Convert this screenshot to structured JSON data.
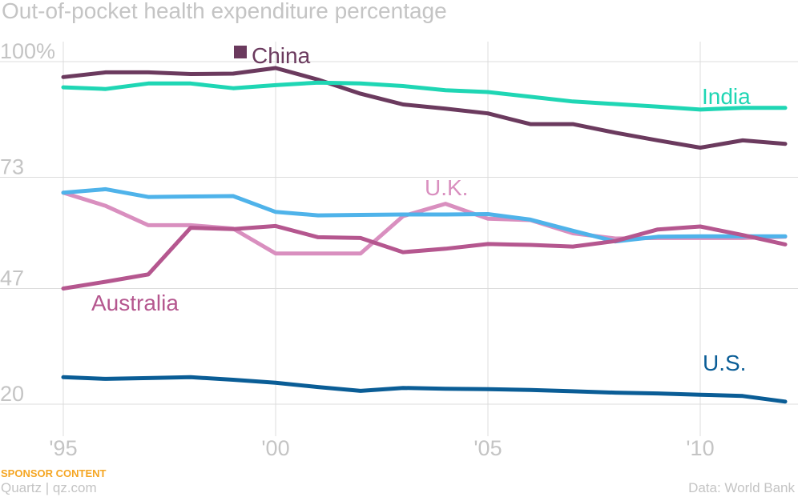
{
  "title": "Out-of-pocket health expenditure percentage",
  "footer": {
    "sponsor": "SPONSOR CONTENT",
    "brand": "Quartz | qz.com",
    "source": "Data: World Bank"
  },
  "chart_data": {
    "type": "line",
    "title": "Out-of-pocket health expenditure percentage",
    "xlabel": "",
    "ylabel": "",
    "x": [
      1995,
      1996,
      1997,
      1998,
      1999,
      2000,
      2001,
      2002,
      2003,
      2004,
      2005,
      2006,
      2007,
      2008,
      2009,
      2010,
      2011,
      2012
    ],
    "xlim": [
      1995,
      2012
    ],
    "ylim": [
      20,
      100
    ],
    "y_ticks": [
      100,
      73,
      47,
      20
    ],
    "y_tick_labels": [
      "100%",
      "73",
      "47",
      "20"
    ],
    "x_ticks": [
      1995,
      2000,
      2005,
      2010
    ],
    "x_tick_labels": [
      "'95",
      "'00",
      "'05",
      "'10"
    ],
    "grid": "vertical",
    "legend": "inline labels",
    "series": [
      {
        "name": "China",
        "color": "#6b3a5e",
        "values": [
          96.4,
          97.5,
          97.5,
          97.1,
          97.2,
          98.5,
          95.8,
          92.5,
          90.0,
          89.0,
          87.9,
          85.4,
          85.4,
          83.4,
          81.6,
          79.9,
          81.6,
          80.8
        ]
      },
      {
        "name": "India",
        "color": "#1fd6b4",
        "values": [
          94.0,
          93.6,
          94.9,
          94.9,
          93.8,
          94.5,
          95.1,
          94.9,
          94.3,
          93.3,
          92.9,
          91.8,
          90.7,
          90.1,
          89.5,
          88.8,
          89.2,
          89.2
        ]
      },
      {
        "name": "U.K.",
        "color": "#d98fbf",
        "values": [
          69.4,
          66.3,
          61.8,
          61.8,
          61.0,
          55.2,
          55.2,
          55.2,
          63.9,
          66.8,
          63.3,
          63.0,
          59.9,
          58.7,
          58.8,
          58.8,
          58.8,
          59.1
        ]
      },
      {
        "name": "",
        "color": "#4fb3ea",
        "values": [
          69.4,
          70.2,
          68.4,
          68.5,
          68.6,
          64.9,
          64.1,
          64.2,
          64.3,
          64.3,
          64.4,
          63.1,
          60.5,
          58.0,
          59.1,
          59.2,
          59.2,
          59.2
        ]
      },
      {
        "name": "Australia",
        "color": "#b5578f",
        "values": [
          47.0,
          48.6,
          50.3,
          61.2,
          60.9,
          61.6,
          59.0,
          58.8,
          55.5,
          56.3,
          57.4,
          57.2,
          56.8,
          58.1,
          60.8,
          61.5,
          59.5,
          57.3
        ]
      },
      {
        "name": "U.S.",
        "color": "#0a5d96",
        "values": [
          26.3,
          25.9,
          26.1,
          26.3,
          25.7,
          25.0,
          24.0,
          23.1,
          23.8,
          23.6,
          23.5,
          23.3,
          23.0,
          22.7,
          22.5,
          22.2,
          21.9,
          20.6
        ]
      }
    ]
  }
}
